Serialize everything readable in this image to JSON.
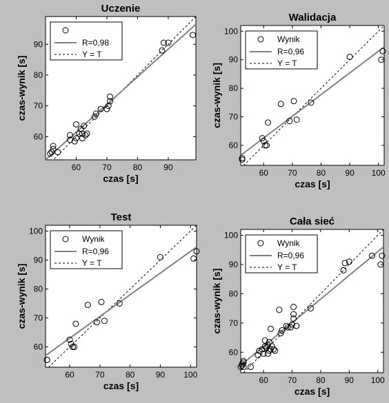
{
  "figure": {
    "background": "#bfbfbf",
    "plot_background": "#ffffff",
    "fit_color": "#808080",
    "point_color": "#000000"
  },
  "chart_data": [
    {
      "id": "uczenie",
      "type": "scatter",
      "title": "Uczenie",
      "xlabel": "czas [s]",
      "ylabel": "czas-wynik [s]",
      "xlim": [
        50,
        99
      ],
      "ylim": [
        52.5,
        99
      ],
      "xticks": [
        60,
        70,
        80,
        90
      ],
      "yticks": [
        60,
        70,
        80,
        90
      ],
      "grid": false,
      "legend": {
        "position": "top-left",
        "entries": [
          "",
          "R=0,98",
          "Y = T"
        ]
      },
      "fit": {
        "x": [
          50,
          99
        ],
        "y": [
          52.5,
          96.5
        ]
      },
      "identity": {
        "x": [
          50,
          99
        ],
        "y": [
          50,
          99
        ]
      },
      "points": [
        [
          51.5,
          54.5
        ],
        [
          52,
          55
        ],
        [
          52.5,
          56
        ],
        [
          52.5,
          57
        ],
        [
          54,
          55
        ],
        [
          58,
          59
        ],
        [
          58,
          60.5
        ],
        [
          59.5,
          58.5
        ],
        [
          60,
          59.5
        ],
        [
          60,
          64
        ],
        [
          61,
          61
        ],
        [
          61.5,
          62.5
        ],
        [
          62,
          59.5
        ],
        [
          62,
          61
        ],
        [
          62.5,
          63.5
        ],
        [
          63,
          60.5
        ],
        [
          63.5,
          61
        ],
        [
          66,
          66.5
        ],
        [
          66.5,
          67.5
        ],
        [
          68,
          69
        ],
        [
          70,
          69
        ],
        [
          70.5,
          70
        ],
        [
          71,
          71.5
        ],
        [
          71,
          73
        ],
        [
          88,
          88
        ],
        [
          88.5,
          90.5
        ],
        [
          90,
          90.5
        ],
        [
          98,
          93
        ]
      ]
    },
    {
      "id": "walidacja",
      "type": "scatter",
      "title": "Walidacja",
      "xlabel": "czas [s]",
      "ylabel": "czas-wynik [s]",
      "xlim": [
        52,
        102
      ],
      "ylim": [
        53,
        102
      ],
      "xticks": [
        60,
        70,
        80,
        90,
        100
      ],
      "yticks": [
        60,
        70,
        80,
        90,
        100
      ],
      "grid": false,
      "legend": {
        "position": "top-left",
        "entries": [
          "Wynik",
          "R=0,96",
          "Y = T"
        ]
      },
      "fit": {
        "x": [
          52,
          102
        ],
        "y": [
          56.5,
          94.5
        ]
      },
      "identity": {
        "x": [
          52,
          102
        ],
        "y": [
          52,
          102
        ]
      },
      "points": [
        [
          52.5,
          55.5
        ],
        [
          52.5,
          55
        ],
        [
          59.5,
          62.5
        ],
        [
          60,
          61.5
        ],
        [
          60.5,
          60
        ],
        [
          61,
          60
        ],
        [
          61.5,
          68
        ],
        [
          66,
          74.5
        ],
        [
          69,
          68.5
        ],
        [
          70.5,
          75.5
        ],
        [
          71.5,
          69
        ],
        [
          76.5,
          75
        ],
        [
          90,
          91
        ],
        [
          101,
          90
        ],
        [
          101.5,
          93
        ]
      ]
    },
    {
      "id": "test",
      "type": "scatter",
      "title": "Test",
      "xlabel": "czas [s]",
      "ylabel": "czas-wynik [s]",
      "xlim": [
        52,
        102
      ],
      "ylim": [
        53,
        102
      ],
      "xticks": [
        60,
        70,
        80,
        90,
        100
      ],
      "yticks": [
        60,
        70,
        80,
        90,
        100
      ],
      "grid": false,
      "legend": {
        "position": "top-left",
        "entries": [
          "Wynik",
          "R=0,96",
          "Y = T"
        ]
      },
      "fit": {
        "x": [
          52,
          102
        ],
        "y": [
          57,
          94.5
        ]
      },
      "identity": {
        "x": [
          52,
          102
        ],
        "y": [
          52,
          102
        ]
      },
      "points": [
        [
          52.5,
          55.5
        ],
        [
          52.5,
          55.5
        ],
        [
          60,
          62.5
        ],
        [
          60.5,
          61
        ],
        [
          61,
          60
        ],
        [
          61.5,
          60
        ],
        [
          62,
          68
        ],
        [
          66,
          74.5
        ],
        [
          69,
          68.5
        ],
        [
          70.5,
          75.5
        ],
        [
          71.5,
          69
        ],
        [
          76.5,
          75
        ],
        [
          90,
          91
        ],
        [
          101,
          90.5
        ],
        [
          102,
          93
        ]
      ]
    },
    {
      "id": "cala-siec",
      "type": "scatter",
      "title": "Cała sieć",
      "xlabel": "czas [s]",
      "ylabel": "czas-wynik [s]",
      "xlim": [
        52,
        102
      ],
      "ylim": [
        53,
        102
      ],
      "xticks": [
        60,
        70,
        80,
        90,
        100
      ],
      "yticks": [
        60,
        70,
        80,
        90,
        100
      ],
      "grid": false,
      "legend": {
        "position": "top-left",
        "entries": [
          "Wynik",
          "R=0,96",
          "Y = T"
        ]
      },
      "fit": {
        "x": [
          52,
          102
        ],
        "y": [
          55.5,
          96
        ]
      },
      "identity": {
        "x": [
          52,
          102
        ],
        "y": [
          52,
          102
        ]
      },
      "points": [
        [
          52,
          55
        ],
        [
          52.5,
          55.5
        ],
        [
          52.5,
          56
        ],
        [
          53,
          56.5
        ],
        [
          53,
          57
        ],
        [
          53,
          55
        ],
        [
          55.5,
          55
        ],
        [
          58,
          59
        ],
        [
          58.5,
          60.5
        ],
        [
          59.5,
          61
        ],
        [
          60,
          59.5
        ],
        [
          60.5,
          62
        ],
        [
          60.5,
          64
        ],
        [
          61,
          61.5
        ],
        [
          61.5,
          62.5
        ],
        [
          61.5,
          59.5
        ],
        [
          62,
          60.5
        ],
        [
          62,
          63.5
        ],
        [
          62.5,
          61
        ],
        [
          62.5,
          68
        ],
        [
          63,
          62
        ],
        [
          63.5,
          61
        ],
        [
          64,
          60.5
        ],
        [
          65.5,
          74.5
        ],
        [
          66,
          66.5
        ],
        [
          66.5,
          67.5
        ],
        [
          68,
          69
        ],
        [
          68.5,
          68.5
        ],
        [
          69.5,
          68.5
        ],
        [
          70,
          69.5
        ],
        [
          70.5,
          71.5
        ],
        [
          70.5,
          73
        ],
        [
          70.5,
          75.5
        ],
        [
          71.5,
          69
        ],
        [
          76.5,
          75
        ],
        [
          88,
          88
        ],
        [
          88.5,
          90.5
        ],
        [
          90,
          91
        ],
        [
          98,
          93
        ],
        [
          101,
          90
        ],
        [
          101.5,
          93
        ]
      ]
    }
  ]
}
